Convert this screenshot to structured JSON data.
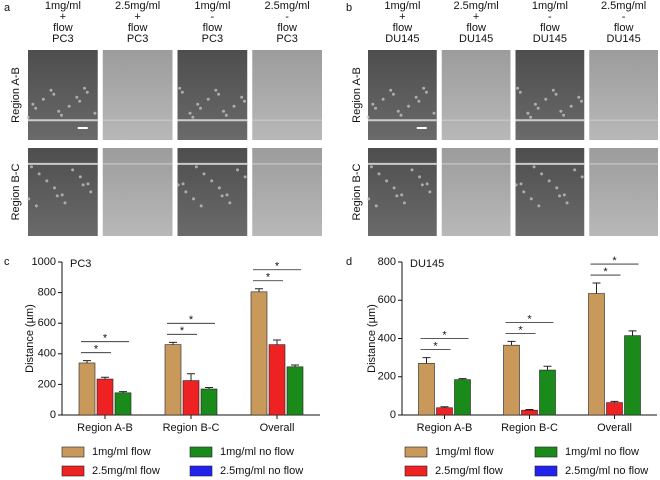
{
  "images": [
    {
      "label": "a",
      "rows": [
        "Region A-B",
        "Region B-C"
      ],
      "columns": [
        [
          "1mg/ml",
          "+",
          "flow",
          "PC3"
        ],
        [
          "2.5mg/ml",
          "+",
          "flow",
          "PC3"
        ],
        [
          "1mg/ml",
          "-",
          "flow",
          "PC3"
        ],
        [
          "2.5mg/ml",
          "-",
          "flow",
          "PC3"
        ]
      ]
    },
    {
      "label": "b",
      "rows": [
        "Region A-B",
        "Region B-C"
      ],
      "columns": [
        [
          "1mg/ml",
          "+",
          "flow",
          "DU145"
        ],
        [
          "2.5mg/ml",
          "+",
          "flow",
          "DU145"
        ],
        [
          "1mg/ml",
          "-",
          "flow",
          "DU145"
        ],
        [
          "2.5mg/ml",
          "-",
          "flow",
          "DU145"
        ]
      ]
    }
  ],
  "chart_data": [
    {
      "label": "c",
      "type": "bar",
      "title": "PC3",
      "y_label": "Distance (µm)",
      "categories": [
        "Region A-B",
        "Region B-C",
        "Overall"
      ],
      "series": [
        {
          "name": "1mg/ml flow",
          "color": "#c8995a",
          "values": [
            340,
            460,
            805
          ],
          "errors": [
            15,
            15,
            20
          ]
        },
        {
          "name": "2.5mg/ml flow",
          "color": "#ee2222",
          "values": [
            235,
            225,
            460
          ],
          "errors": [
            12,
            45,
            30
          ]
        },
        {
          "name": "1mg/ml no flow",
          "color": "#1a8a1a",
          "values": [
            145,
            170,
            315
          ],
          "errors": [
            8,
            10,
            12
          ]
        },
        {
          "name": "2.5mg/ml no flow",
          "color": "#2222ee",
          "values": [
            null,
            null,
            null
          ],
          "errors": [
            null,
            null,
            null
          ]
        }
      ],
      "comparisons": [
        {
          "category": "Region A-B",
          "series": [
            "1mg/ml flow",
            "2.5mg/ml flow"
          ],
          "label": "*"
        },
        {
          "category": "Region A-B",
          "series": [
            "1mg/ml flow",
            "1mg/ml no flow"
          ],
          "label": "*"
        },
        {
          "category": "Region B-C",
          "series": [
            "1mg/ml flow",
            "2.5mg/ml flow"
          ],
          "label": "*"
        },
        {
          "category": "Region B-C",
          "series": [
            "1mg/ml flow",
            "1mg/ml no flow"
          ],
          "label": "*"
        },
        {
          "category": "Overall",
          "series": [
            "1mg/ml flow",
            "2.5mg/ml flow"
          ],
          "label": "*"
        },
        {
          "category": "Overall",
          "series": [
            "1mg/ml flow",
            "1mg/ml no flow"
          ],
          "label": "*"
        }
      ],
      "ylim": [
        0,
        1000
      ],
      "yticks": [
        0,
        200,
        400,
        600,
        800,
        1000
      ]
    },
    {
      "label": "d",
      "type": "bar",
      "title": "DU145",
      "y_label": "Distance (µm)",
      "categories": [
        "Region A-B",
        "Region B-C",
        "Overall"
      ],
      "series": [
        {
          "name": "1mg/ml flow",
          "color": "#c8995a",
          "values": [
            270,
            365,
            635
          ],
          "errors": [
            30,
            20,
            55
          ]
        },
        {
          "name": "2.5mg/ml flow",
          "color": "#ee2222",
          "values": [
            38,
            25,
            65
          ],
          "errors": [
            5,
            4,
            6
          ]
        },
        {
          "name": "1mg/ml no flow",
          "color": "#1a8a1a",
          "values": [
            185,
            235,
            415
          ],
          "errors": [
            5,
            20,
            25
          ]
        },
        {
          "name": "2.5mg/ml no flow",
          "color": "#2222ee",
          "values": [
            null,
            null,
            null
          ],
          "errors": [
            null,
            null,
            null
          ]
        }
      ],
      "comparisons": [
        {
          "category": "Region A-B",
          "series": [
            "1mg/ml flow",
            "2.5mg/ml flow"
          ],
          "label": "*"
        },
        {
          "category": "Region A-B",
          "series": [
            "1mg/ml flow",
            "1mg/ml no flow"
          ],
          "label": "*"
        },
        {
          "category": "Region B-C",
          "series": [
            "1mg/ml flow",
            "2.5mg/ml flow"
          ],
          "label": "*"
        },
        {
          "category": "Region B-C",
          "series": [
            "1mg/ml flow",
            "1mg/ml no flow"
          ],
          "label": "*"
        },
        {
          "category": "Overall",
          "series": [
            "1mg/ml flow",
            "2.5mg/ml flow"
          ],
          "label": "*"
        },
        {
          "category": "Overall",
          "series": [
            "1mg/ml flow",
            "1mg/ml no flow"
          ],
          "label": "*"
        }
      ],
      "ylim": [
        0,
        800
      ],
      "yticks": [
        0,
        200,
        400,
        600,
        800
      ]
    }
  ]
}
